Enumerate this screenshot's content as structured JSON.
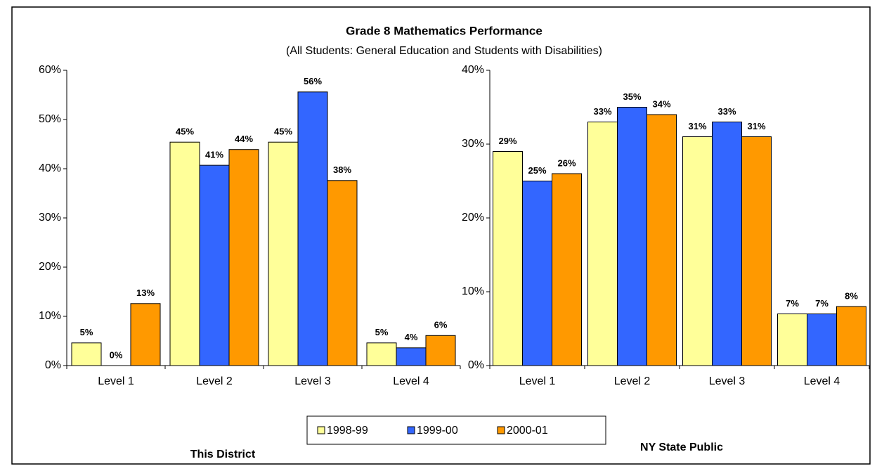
{
  "chart_data": [
    {
      "type": "bar",
      "title": "Grade 8 Mathematics Performance",
      "subtitle": "(All Students: General Education and Students with Disabilities)",
      "label": "This District",
      "categories": [
        "Level 1",
        "Level 2",
        "Level 3",
        "Level 4"
      ],
      "series": [
        {
          "name": "1998-99",
          "color": "#ffff99",
          "values": [
            4.6,
            45.4,
            45.4,
            4.6
          ],
          "value_labels": [
            "5%",
            "45%",
            "45%",
            "5%"
          ]
        },
        {
          "name": "1999-00",
          "color": "#3366ff",
          "values": [
            0,
            40.7,
            55.6,
            3.6
          ],
          "value_labels": [
            "0%",
            "41%",
            "56%",
            "4%"
          ]
        },
        {
          "name": "2000-01",
          "color": "#ff9900",
          "values": [
            12.6,
            43.9,
            37.6,
            6.1
          ],
          "value_labels": [
            "13%",
            "44%",
            "38%",
            "6%"
          ]
        }
      ],
      "ylim": [
        0,
        60
      ],
      "yticks": [
        {
          "value": 0,
          "label": "0%"
        },
        {
          "value": 10,
          "label": "10%"
        },
        {
          "value": 20,
          "label": "20%"
        },
        {
          "value": 30,
          "label": "30%"
        },
        {
          "value": 40,
          "label": "40%"
        },
        {
          "value": 50,
          "label": "50%"
        },
        {
          "value": 60,
          "label": "60%"
        }
      ]
    },
    {
      "type": "bar",
      "label": "NY State Public",
      "categories": [
        "Level 1",
        "Level 2",
        "Level 3",
        "Level 4"
      ],
      "series": [
        {
          "color": "#ffff99",
          "values": [
            29,
            33,
            31,
            7
          ],
          "value_labels": [
            "29%",
            "33%",
            "31%",
            "7%"
          ]
        },
        {
          "color": "#3366ff",
          "values": [
            25,
            35,
            33,
            7
          ],
          "value_labels": [
            "25%",
            "35%",
            "33%",
            "7%"
          ]
        },
        {
          "color": "#ff9900",
          "values": [
            26,
            34,
            31,
            8
          ],
          "value_labels": [
            "26%",
            "34%",
            "31%",
            "8%"
          ]
        }
      ],
      "ylim": [
        0,
        40
      ],
      "yticks": [
        {
          "value": 0,
          "label": "0%"
        },
        {
          "value": 10,
          "label": "10%"
        },
        {
          "value": 20,
          "label": "20%"
        },
        {
          "value": 30,
          "label": "30%"
        },
        {
          "value": 40,
          "label": "40%"
        }
      ]
    }
  ]
}
